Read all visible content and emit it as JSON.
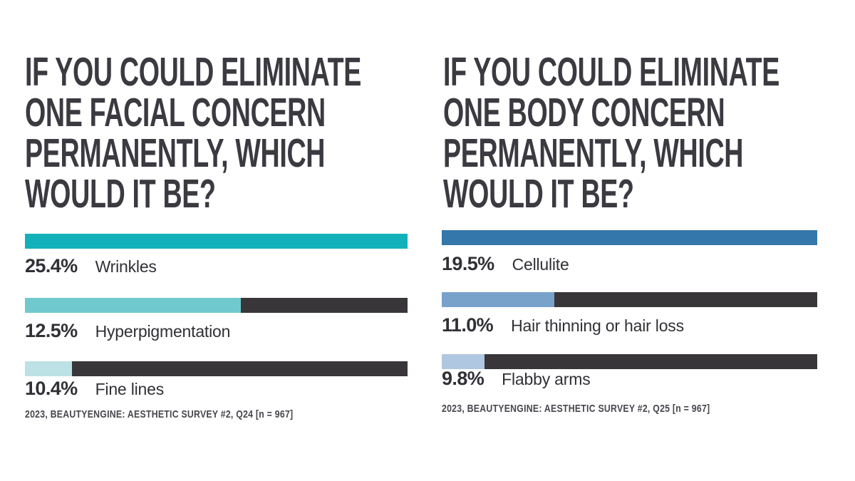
{
  "colors": {
    "background": "#ffffff",
    "title_text": "#3b3a41",
    "body_text": "#303036",
    "source_text": "#47464d",
    "bar_track": "#383639",
    "facial_accent_full": "#12b1b9",
    "facial_accent_mid": "#6fc9cd",
    "facial_accent_light": "#bce2e5",
    "body_accent_full": "#3377ab",
    "body_accent_mid": "#79a2cb",
    "body_accent_light": "#b0c7e1"
  },
  "panels": [
    {
      "name": "facial-concern",
      "title_lines": [
        "IF YOU COULD ELIMINATE",
        "ONE FACIAL CONCERN",
        "PERMANENTLY, WHICH",
        "WOULD IT BE?"
      ],
      "bars": [
        {
          "percent": "25.4%",
          "label": "Wrinkles",
          "fill_color": "#12b1b9",
          "fill_fraction": 1.0
        },
        {
          "percent": "12.5%",
          "label": "Hyperpigmentation",
          "fill_color": "#6fc9cd",
          "fill_fraction": 0.565
        },
        {
          "percent": "10.4%",
          "label": "Fine lines",
          "fill_color": "#bce2e5",
          "fill_fraction": 0.123
        }
      ],
      "source": "2023, BEAUTYENGINE: AESTHETIC SURVEY #2, Q24 [n = 967]"
    },
    {
      "name": "body-concern",
      "title_lines": [
        "IF YOU COULD ELIMINATE",
        "ONE BODY CONCERN",
        "PERMANENTLY, WHICH",
        "WOULD IT BE?"
      ],
      "bars": [
        {
          "percent": "19.5%",
          "label": "Cellulite",
          "fill_color": "#3377ab",
          "fill_fraction": 1.0
        },
        {
          "percent": "11.0%",
          "label": "Hair thinning or hair loss",
          "fill_color": "#79a2cb",
          "fill_fraction": 0.3
        },
        {
          "percent": "9.8%",
          "label": "Flabby arms",
          "fill_color": "#b0c7e1",
          "fill_fraction": 0.114
        }
      ],
      "source": "2023, BEAUTYENGINE: AESTHETIC SURVEY #2, Q25 [n = 967]"
    }
  ],
  "chart_data": [
    {
      "type": "bar",
      "orientation": "horizontal",
      "title": "IF YOU COULD ELIMINATE ONE FACIAL CONCERN PERMANENTLY, WHICH WOULD IT BE?",
      "categories": [
        "Wrinkles",
        "Hyperpigmentation",
        "Fine lines"
      ],
      "values": [
        25.4,
        12.5,
        10.4
      ],
      "unit": "%",
      "bar_fill_fractions": [
        1.0,
        0.565,
        0.123
      ],
      "bar_colors": [
        "#12b1b9",
        "#6fc9cd",
        "#bce2e5"
      ],
      "track_color": "#383639",
      "legend": "none",
      "source": "2023, BEAUTYENGINE: AESTHETIC SURVEY #2, Q24 [n = 967]"
    },
    {
      "type": "bar",
      "orientation": "horizontal",
      "title": "IF YOU COULD ELIMINATE ONE BODY CONCERN PERMANENTLY, WHICH WOULD IT BE?",
      "categories": [
        "Cellulite",
        "Hair thinning or hair loss",
        "Flabby arms"
      ],
      "values": [
        19.5,
        11.0,
        9.8
      ],
      "unit": "%",
      "bar_fill_fractions": [
        1.0,
        0.3,
        0.114
      ],
      "bar_colors": [
        "#3377ab",
        "#79a2cb",
        "#b0c7e1"
      ],
      "track_color": "#383639",
      "legend": "none",
      "source": "2023, BEAUTYENGINE: AESTHETIC SURVEY #2, Q25 [n = 967]"
    }
  ]
}
